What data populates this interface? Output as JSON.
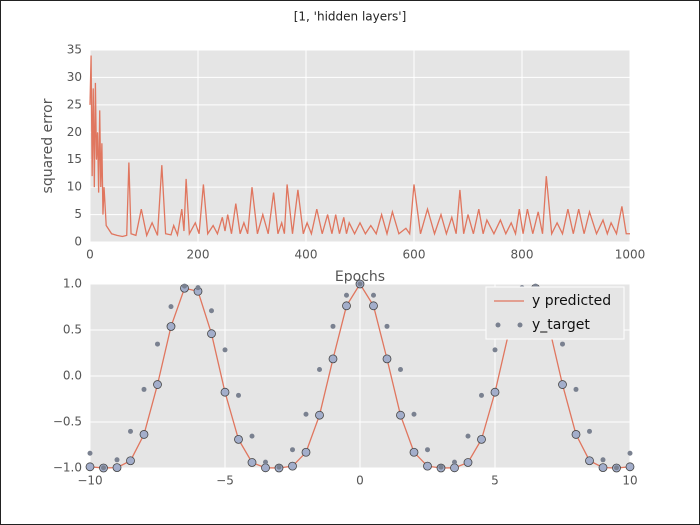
{
  "suptitle": "[1, 'hidden layers']",
  "chart_data": [
    {
      "type": "line",
      "xlabel": "Epochs",
      "ylabel": "squared error",
      "color": "#e0765f",
      "xlim": [
        0,
        1000
      ],
      "xticks": [
        0,
        200,
        400,
        600,
        800,
        1000
      ],
      "ylim": [
        0,
        35
      ],
      "yticks": [
        0,
        5,
        10,
        15,
        20,
        25,
        30,
        35
      ],
      "grid": true,
      "x": [
        0,
        2,
        4,
        6,
        8,
        10,
        12,
        14,
        16,
        18,
        20,
        22,
        24,
        26,
        30,
        40,
        50,
        60,
        68,
        72,
        76,
        85,
        95,
        105,
        115,
        125,
        133,
        140,
        150,
        155,
        162,
        170,
        174,
        178,
        184,
        195,
        202,
        210,
        218,
        228,
        236,
        245,
        250,
        255,
        262,
        270,
        278,
        285,
        292,
        300,
        310,
        320,
        330,
        340,
        348,
        355,
        360,
        365,
        375,
        385,
        395,
        402,
        410,
        420,
        430,
        440,
        448,
        455,
        462,
        470,
        475,
        480,
        490,
        500,
        510,
        520,
        530,
        540,
        550,
        560,
        572,
        585,
        592,
        600,
        612,
        625,
        638,
        650,
        660,
        670,
        678,
        685,
        692,
        700,
        710,
        720,
        728,
        735,
        748,
        760,
        770,
        780,
        788,
        795,
        802,
        810,
        820,
        830,
        838,
        845,
        855,
        865,
        875,
        885,
        895,
        905,
        915,
        925,
        938,
        950,
        958,
        965,
        975,
        985,
        993,
        1000
      ],
      "values": [
        25,
        34,
        12,
        28,
        10,
        29,
        15,
        20,
        9,
        24,
        10,
        18,
        5,
        10,
        3,
        1.5,
        1.2,
        1,
        1.2,
        14.5,
        1.5,
        1.2,
        6,
        1.2,
        3.5,
        1.2,
        14,
        1.5,
        1.3,
        3,
        1.3,
        6,
        2,
        11.5,
        1.5,
        3.5,
        1.5,
        10.5,
        1.5,
        3,
        1.5,
        4.5,
        2,
        5,
        1.5,
        7,
        1.5,
        3.5,
        1.5,
        10,
        1.5,
        5,
        1.5,
        9,
        1.5,
        3.5,
        1.5,
        10.5,
        1.5,
        9.5,
        1.5,
        3.5,
        1.5,
        6,
        1.5,
        5,
        1.5,
        5,
        1.5,
        4.5,
        1.5,
        3.5,
        1.5,
        3.5,
        1.5,
        3,
        1.5,
        5,
        1.5,
        5.5,
        1.5,
        2.5,
        1.5,
        10.5,
        1.5,
        6,
        1.5,
        5,
        1.5,
        4.5,
        1.5,
        9.5,
        1.5,
        5,
        1.5,
        6,
        1.5,
        4,
        1.5,
        4,
        1.5,
        3.5,
        1.5,
        6,
        1.5,
        6,
        1.5,
        5.5,
        1.5,
        12,
        1.5,
        3.5,
        1.5,
        6,
        1.5,
        6,
        1.5,
        5.5,
        1.5,
        4,
        1.5,
        3.5,
        1.5,
        6.5,
        1.5,
        1.5
      ]
    },
    {
      "type": "line",
      "legend_loc": "upper right",
      "xlim": [
        -10,
        10
      ],
      "xticks": [
        {
          "value": -10,
          "label": "−10"
        },
        {
          "value": -5,
          "label": "−5"
        },
        0,
        5,
        10
      ],
      "ylim": [
        -1,
        1
      ],
      "yticks": [
        {
          "value": -1,
          "label": "−1.0"
        },
        {
          "value": -0.5,
          "label": "−0.5"
        },
        {
          "value": 0,
          "label": "0.0"
        },
        0.5,
        {
          "value": 1,
          "label": "1.0"
        }
      ],
      "grid": true,
      "x": [
        -10,
        -9.5,
        -9,
        -8.5,
        -8,
        -7.5,
        -7,
        -6.5,
        -6,
        -5.5,
        -5,
        -4.5,
        -4,
        -3.5,
        -3,
        -2.5,
        -2,
        -1.5,
        -1,
        -0.5,
        0,
        0.5,
        1,
        1.5,
        2,
        2.5,
        3,
        3.5,
        4,
        4.5,
        5,
        5.5,
        6,
        6.5,
        7,
        7.5,
        8,
        8.5,
        9,
        9.5,
        10
      ],
      "series": [
        {
          "name": "y predicted",
          "style": "line+markers",
          "color": "#e0765f",
          "marker_color": "#a3aecb",
          "values": [
            -0.987,
            -1,
            -0.996,
            -0.921,
            -0.635,
            -0.093,
            0.538,
            0.954,
            0.921,
            0.46,
            -0.176,
            -0.689,
            -0.94,
            -0.998,
            -1,
            -0.98,
            -0.829,
            -0.426,
            0.186,
            0.763,
            1,
            0.763,
            0.186,
            -0.426,
            -0.829,
            -0.98,
            -1,
            -0.998,
            -0.94,
            -0.689,
            -0.176,
            0.46,
            0.921,
            0.954,
            0.538,
            -0.093,
            -0.635,
            -0.921,
            -0.996,
            -1,
            -0.987
          ]
        },
        {
          "name": "y_target",
          "style": "markers",
          "color": "#7a8190",
          "values": [
            -0.84,
            -0.997,
            -0.911,
            -0.602,
            -0.146,
            0.347,
            0.754,
            0.977,
            0.96,
            0.709,
            0.284,
            -0.211,
            -0.654,
            -0.936,
            -0.99,
            -0.801,
            -0.416,
            0.071,
            0.54,
            0.878,
            1,
            0.878,
            0.54,
            0.071,
            -0.416,
            -0.801,
            -0.99,
            -0.936,
            -0.654,
            -0.211,
            0.284,
            0.709,
            0.96,
            0.977,
            0.754,
            0.347,
            -0.146,
            -0.602,
            -0.911,
            -0.997,
            -0.84
          ]
        }
      ]
    }
  ]
}
